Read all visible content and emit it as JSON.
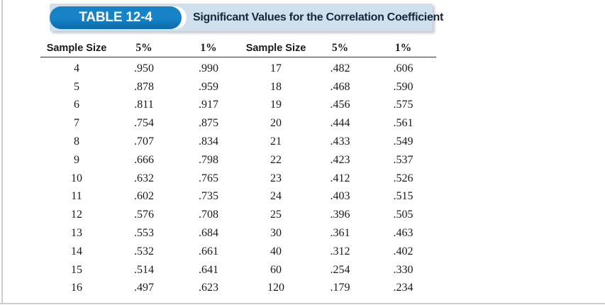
{
  "header": {
    "badge_label": "TABLE 12-4",
    "title": "Significant Values for the Correlation Coefficient"
  },
  "table": {
    "columns": [
      "Sample Size",
      "5%",
      "1%",
      "Sample Size",
      "5%",
      "1%"
    ],
    "rows": [
      [
        "4",
        ".950",
        ".990",
        "17",
        ".482",
        ".606"
      ],
      [
        "5",
        ".878",
        ".959",
        "18",
        ".468",
        ".590"
      ],
      [
        "6",
        ".811",
        ".917",
        "19",
        ".456",
        ".575"
      ],
      [
        "7",
        ".754",
        ".875",
        "20",
        ".444",
        ".561"
      ],
      [
        "8",
        ".707",
        ".834",
        "21",
        ".433",
        ".549"
      ],
      [
        "9",
        ".666",
        ".798",
        "22",
        ".423",
        ".537"
      ],
      [
        "10",
        ".632",
        ".765",
        "23",
        ".412",
        ".526"
      ],
      [
        "11",
        ".602",
        ".735",
        "24",
        ".403",
        ".515"
      ],
      [
        "12",
        ".576",
        ".708",
        "25",
        ".396",
        ".505"
      ],
      [
        "13",
        ".553",
        ".684",
        "30",
        ".361",
        ".463"
      ],
      [
        "14",
        ".532",
        ".661",
        "40",
        ".312",
        ".402"
      ],
      [
        "15",
        ".514",
        ".641",
        "60",
        ".254",
        ".330"
      ],
      [
        "16",
        ".497",
        ".623",
        "120",
        ".179",
        ".234"
      ]
    ]
  },
  "colors": {
    "badge_blue": "#1583c5",
    "badge_blue_dark": "#0d6aa8",
    "bar_blue": "#cfdfeb",
    "title_text": "#15263f",
    "rule": "#2e2e2e",
    "edge": "#cdcdcd",
    "text": "#1a1a1a"
  }
}
